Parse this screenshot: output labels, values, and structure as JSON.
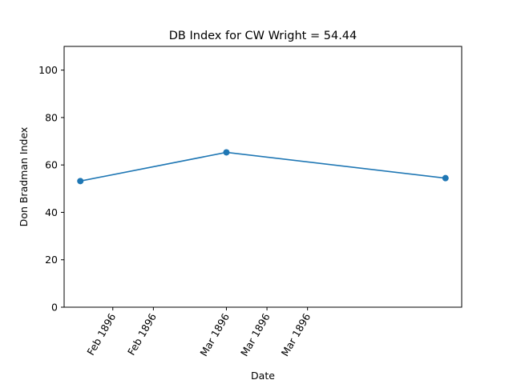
{
  "chart_data": {
    "type": "line",
    "title": "DB Index for CW Wright = 54.44",
    "xlabel": "Date",
    "ylabel": "Don Bradman Index",
    "x": [
      "1896-02-13",
      "1896-03-02",
      "1896-03-29"
    ],
    "series": [
      {
        "values": [
          53.2,
          65.3,
          54.44
        ]
      }
    ],
    "x_ticks": [
      {
        "date": "1896-02-17",
        "label": "Feb 1896"
      },
      {
        "date": "1896-02-22",
        "label": "Feb 1896"
      },
      {
        "date": "1896-03-02",
        "label": "Mar 1896"
      },
      {
        "date": "1896-03-07",
        "label": "Mar 1896"
      },
      {
        "date": "1896-03-12",
        "label": "Mar 1896"
      }
    ],
    "xlim": [
      "1896-02-11",
      "1896-03-31"
    ],
    "y_ticks": [
      0,
      20,
      40,
      60,
      80,
      100
    ],
    "ylim": [
      0,
      110
    ],
    "grid": false,
    "colors": {
      "line": "#1f77b4",
      "marker": "#1f77b4"
    }
  }
}
